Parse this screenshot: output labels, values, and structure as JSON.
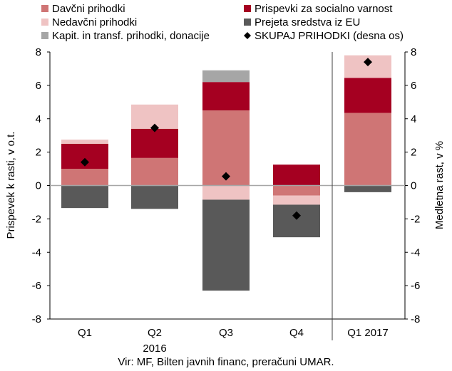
{
  "chart_data": {
    "type": "bar",
    "stacked": true,
    "categories": [
      "Q1",
      "Q2",
      "Q3",
      "Q4",
      "Q1 2017"
    ],
    "year_label": "2016",
    "ylabel_left": "Prispevek k rasti, v o.t.",
    "ylabel_right": "Medletna rast, v %",
    "ylim": [
      -8,
      8
    ],
    "yticks": [
      -8,
      -6,
      -4,
      -2,
      0,
      2,
      4,
      6,
      8
    ],
    "grid": false,
    "legend_position": "top",
    "source": "Vir: MF, Bilten javnih financ, preračuni UMAR.",
    "series": [
      {
        "name": "Davčni prihodki",
        "color": "#cf7575",
        "values": [
          1.0,
          1.65,
          4.5,
          -0.6,
          4.35
        ]
      },
      {
        "name": "Prispevki za socialno varnost",
        "color": "#a50021",
        "values": [
          1.5,
          1.75,
          1.7,
          1.25,
          2.1
        ]
      },
      {
        "name": "Nedavčni prihodki",
        "color": "#efc3c3",
        "values": [
          0.25,
          1.45,
          -0.85,
          -0.55,
          1.35
        ]
      },
      {
        "name": "Prejeta sredstva iz EU",
        "color": "#595959",
        "values": [
          -1.35,
          -1.4,
          -5.45,
          -1.95,
          -0.4
        ]
      },
      {
        "name": "Kapit. in transf. prihodki, donacije",
        "color": "#a6a6a6",
        "values": [
          0.0,
          0.0,
          0.7,
          0.0,
          0.0
        ]
      }
    ],
    "total_series": {
      "name": "SKUPAJ PRIHODKI (desna os)",
      "color": "#000000",
      "marker": "diamond",
      "values": [
        1.4,
        3.45,
        0.55,
        -1.8,
        7.4
      ]
    }
  }
}
